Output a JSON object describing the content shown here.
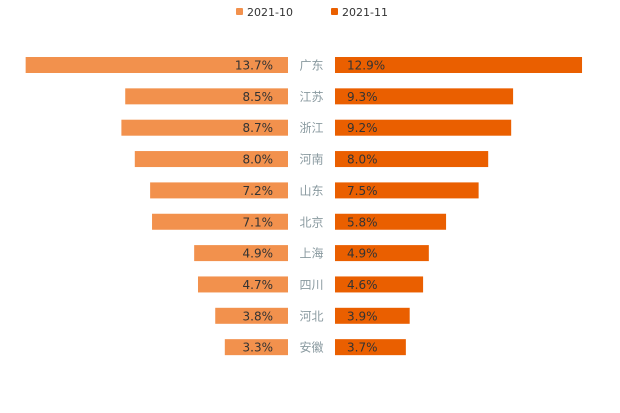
{
  "chart_data": {
    "type": "bar",
    "subtype": "butterfly",
    "categories": [
      "广东",
      "江苏",
      "浙江",
      "河南",
      "山东",
      "北京",
      "上海",
      "四川",
      "河北",
      "安徽"
    ],
    "series": [
      {
        "name": "2021-10",
        "values": [
          13.7,
          8.5,
          8.7,
          8.0,
          7.2,
          7.1,
          4.9,
          4.7,
          3.8,
          3.3
        ],
        "color": "#F2914D"
      },
      {
        "name": "2021-11",
        "values": [
          12.9,
          9.3,
          9.2,
          8.0,
          7.5,
          5.8,
          4.9,
          4.6,
          3.9,
          3.7
        ],
        "color": "#EA5F00"
      }
    ],
    "value_suffix": "%",
    "legend_position": "top-center",
    "grid": false
  }
}
